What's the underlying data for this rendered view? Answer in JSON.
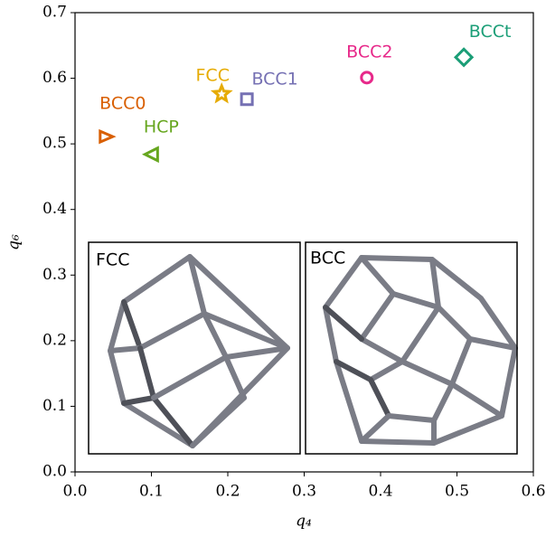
{
  "chart_data": {
    "type": "scatter",
    "xlabel": "q₄",
    "ylabel": "q₆",
    "xlim": [
      0,
      0.6
    ],
    "ylim": [
      0,
      0.7
    ],
    "xticks": [
      {
        "value": 0,
        "label": "0.0"
      },
      0.1,
      0.2,
      0.3,
      0.4,
      0.5,
      0.6
    ],
    "yticks": [
      {
        "value": 0,
        "label": "0.0"
      },
      0.1,
      0.2,
      0.3,
      0.4,
      0.5,
      0.6,
      0.7
    ],
    "series": [
      {
        "name": "BCC0",
        "color": "#d95f02",
        "marker": "triangle-right",
        "x": [
          0.04
        ],
        "values": [
          0.511
        ]
      },
      {
        "name": "HCP",
        "color": "#66a61e",
        "marker": "triangle-left",
        "x": [
          0.101
        ],
        "values": [
          0.484
        ]
      },
      {
        "name": "FCC",
        "color": "#e6ab02",
        "marker": "star",
        "x": [
          0.192
        ],
        "values": [
          0.576
        ]
      },
      {
        "name": "BCC1",
        "color": "#7570b3",
        "marker": "square",
        "x": [
          0.225
        ],
        "values": [
          0.568
        ]
      },
      {
        "name": "BCC2",
        "color": "#e7298a",
        "marker": "circle",
        "x": [
          0.382
        ],
        "values": [
          0.601
        ]
      },
      {
        "name": "BCCt",
        "color": "#1b9e77",
        "marker": "diamond",
        "x": [
          0.509
        ],
        "values": [
          0.632
        ]
      }
    ],
    "insets": [
      {
        "label": "FCC"
      },
      {
        "label": "BCC"
      }
    ]
  }
}
